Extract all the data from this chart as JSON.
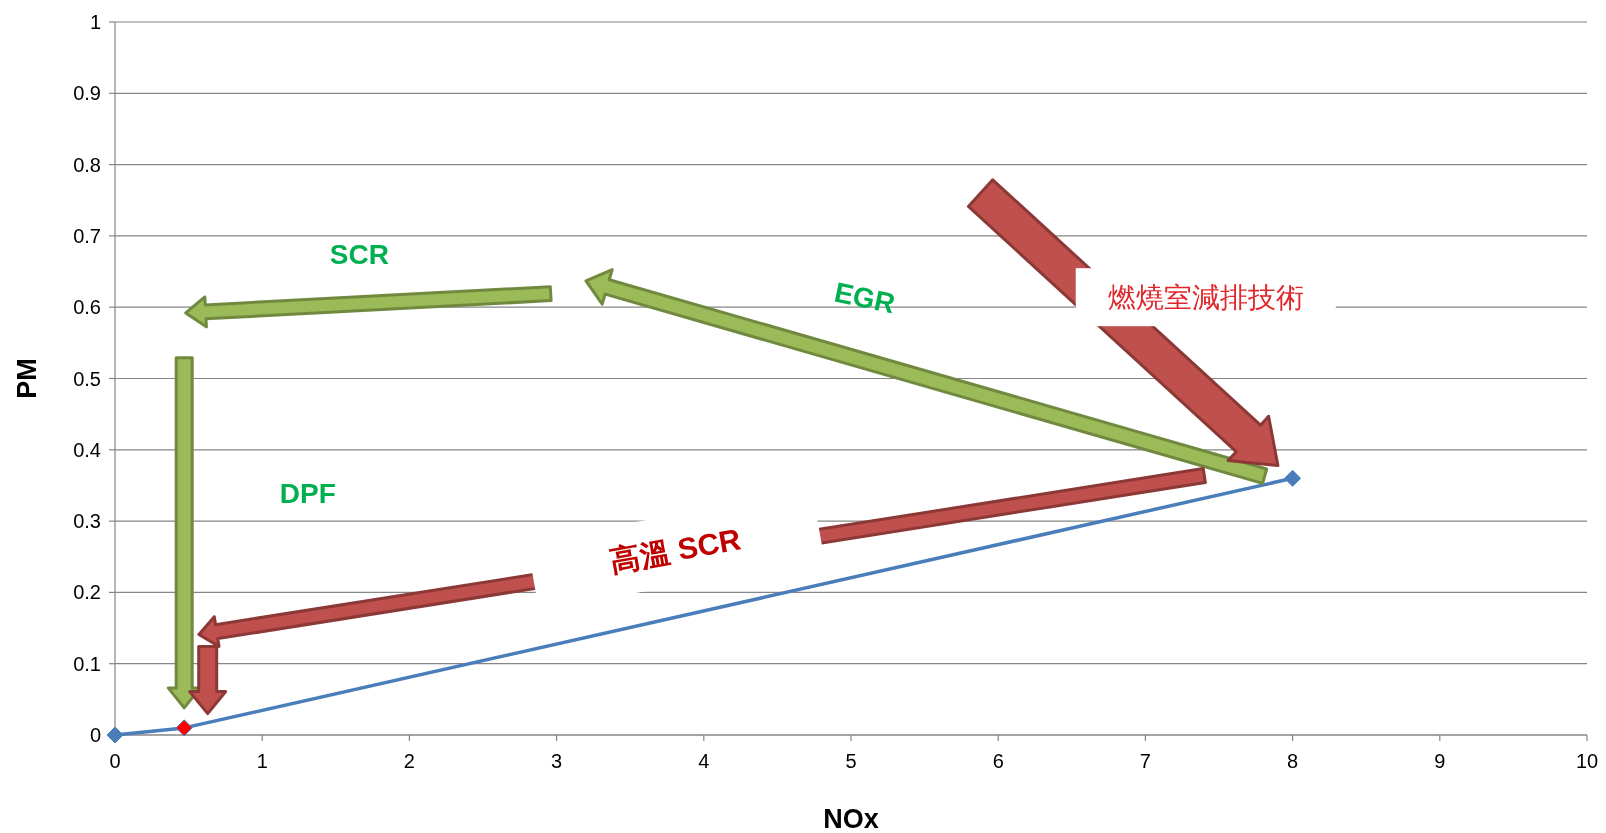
{
  "chart_data": {
    "type": "line",
    "xlabel": "NOx",
    "ylabel": "PM",
    "xlim": [
      0,
      10
    ],
    "xticks": [
      0,
      1,
      2,
      3,
      4,
      5,
      6,
      7,
      8,
      9,
      10
    ],
    "ylim": [
      0,
      1
    ],
    "yticks": [
      0,
      0.1,
      0.2,
      0.3,
      0.4,
      0.5,
      0.6,
      0.7,
      0.8,
      0.9,
      1
    ],
    "grid": "y",
    "marker": "diamond",
    "line_style": "solid",
    "series": [
      {
        "x": [
          0,
          0.47,
          8
        ],
        "values": [
          0,
          0.01,
          0.36
        ],
        "color": "#4a7ebb",
        "colors": [
          "#4a7ebb",
          "#ff0000",
          "#4a7ebb"
        ]
      }
    ],
    "annotations": [
      "SCR",
      "EGR",
      "DPF",
      "燃燒室減排技術",
      "高溫 SCR"
    ]
  }
}
